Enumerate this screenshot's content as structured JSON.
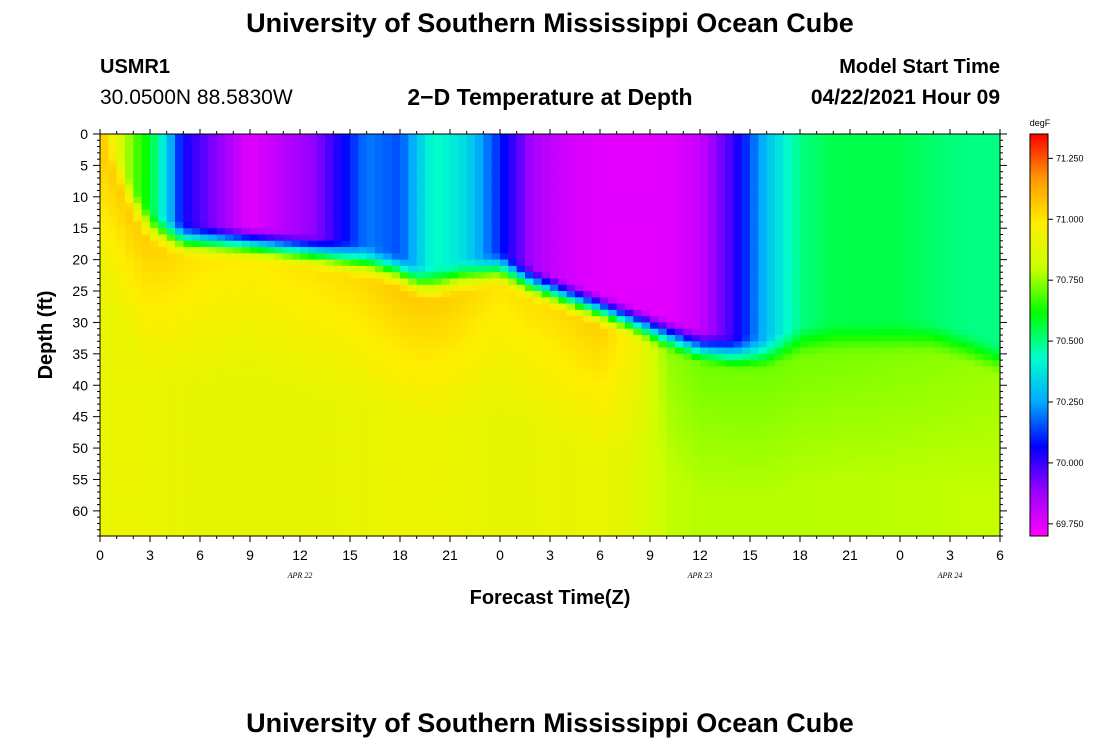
{
  "header": {
    "title": "University of Southern Mississippi Ocean Cube",
    "station": "USMR1",
    "coords": "30.0500N  88.5830W",
    "subtitle": "2−D Temperature at Depth",
    "model_label": "Model Start Time",
    "model_date": "04/22/2021 Hour 09"
  },
  "footer": {
    "title": "University of Southern Mississippi Ocean Cube"
  },
  "colors": {
    "palette": [
      "#ff00ff",
      "#9900ff",
      "#0000ff",
      "#00aaff",
      "#00ffcc",
      "#00ff00",
      "#ccff00",
      "#ffee00",
      "#ff9900",
      "#ff0000"
    ]
  },
  "chart_data": {
    "type": "heatmap",
    "title": "2−D Temperature at Depth",
    "xlabel": "Forecast Time(Z)",
    "ylabel": "Depth (ft)",
    "x_range_hours": [
      0,
      54
    ],
    "y_range_ft": [
      0,
      64
    ],
    "x_ticks": [
      "0",
      "3",
      "6",
      "9",
      "12",
      "15",
      "18",
      "21",
      "0",
      "3",
      "6",
      "9",
      "12",
      "15",
      "18",
      "21",
      "0",
      "3",
      "6"
    ],
    "y_ticks": [
      "0",
      "5",
      "10",
      "15",
      "20",
      "25",
      "30",
      "35",
      "40",
      "45",
      "50",
      "55",
      "60"
    ],
    "date_labels": [
      {
        "text": "APR 22",
        "hour": 12
      },
      {
        "text": "APR 23",
        "hour": 36
      },
      {
        "text": "APR 24",
        "hour": 51
      }
    ],
    "colorbar": {
      "unit": "degF",
      "min": 69.7,
      "max": 71.35,
      "ticks": [
        "69.750",
        "70.000",
        "70.250",
        "70.500",
        "70.750",
        "71.000",
        "71.250"
      ]
    },
    "surface_layer": {
      "hours": [
        0,
        1,
        2,
        3,
        5,
        9,
        13,
        16,
        18,
        19,
        20,
        22,
        24,
        26,
        28,
        30,
        32,
        33,
        34,
        36,
        38,
        40,
        42,
        44,
        46,
        48,
        50,
        52,
        54
      ],
      "thermocline_depth_ft": [
        0,
        5,
        11,
        15,
        17,
        17.5,
        19,
        20.5,
        22,
        23.5,
        24,
        22.5,
        21.5,
        24,
        26,
        28,
        30,
        31,
        32,
        34,
        35,
        35,
        33,
        32.5,
        32.5,
        32.5,
        32.5,
        34,
        36
      ],
      "surface_temp_degF": [
        71.1,
        70.9,
        70.7,
        70.6,
        70.05,
        69.75,
        69.9,
        70.2,
        70.15,
        70.3,
        70.45,
        70.35,
        70.1,
        69.85,
        69.78,
        69.75,
        69.75,
        69.75,
        69.75,
        69.8,
        70.0,
        70.3,
        70.5,
        70.55,
        70.55,
        70.55,
        70.52,
        70.5,
        70.5
      ]
    },
    "deep_layer": {
      "hours": [
        0,
        3,
        6,
        9,
        12,
        15,
        18,
        21,
        24,
        27,
        30,
        32,
        34,
        36,
        40,
        46,
        50,
        54
      ],
      "temp_degF": [
        71.05,
        71.05,
        71.0,
        70.98,
        71.0,
        71.02,
        71.06,
        71.05,
        71.0,
        71.02,
        71.05,
        70.95,
        70.75,
        70.72,
        70.72,
        70.73,
        70.74,
        70.76
      ],
      "bottom_temp_degF": 70.82
    }
  }
}
